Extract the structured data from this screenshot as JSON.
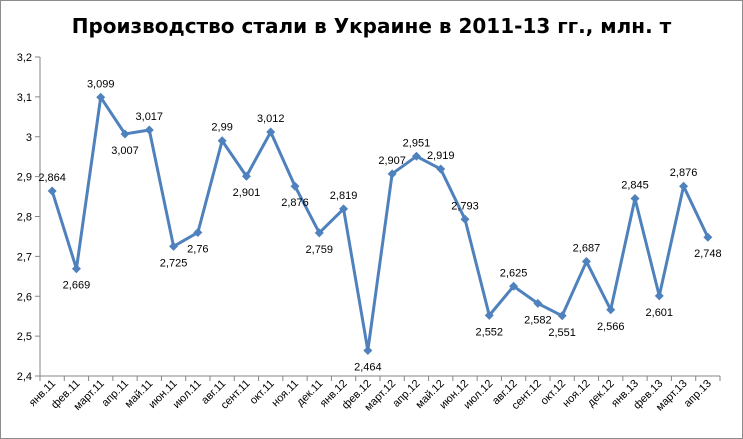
{
  "chart_data": {
    "type": "line",
    "title": "Производство стали в Украине в 2011-13 гг., млн. т",
    "xlabel": "",
    "ylabel": "",
    "ylim": [
      2.4,
      3.2
    ],
    "ytick_values": [
      2.4,
      2.5,
      2.6,
      2.7,
      2.8,
      2.9,
      3.0,
      3.1,
      3.2
    ],
    "ytick_labels": [
      "2,4",
      "2,5",
      "2,6",
      "2,7",
      "2,8",
      "2,9",
      "3",
      "3,1",
      "3,2"
    ],
    "grid": false,
    "legend": "none",
    "series_color": "#4f81bd",
    "categories": [
      "янв.11",
      "фев.11",
      "март.11",
      "апр.11",
      "май.11",
      "июн.11",
      "июл.11",
      "авг.11",
      "сент.11",
      "окт.11",
      "ноя.11",
      "дек.11",
      "янв.12",
      "фев.12",
      "март.12",
      "апр.12",
      "май.12",
      "июн.12",
      "июл.12",
      "авг.12",
      "сент.12",
      "окт.12",
      "ноя.12",
      "дек.12",
      "янв.13",
      "фев.13",
      "март.13",
      "апр.13"
    ],
    "values": [
      2.864,
      2.669,
      3.099,
      3.007,
      3.017,
      2.725,
      2.76,
      2.99,
      2.901,
      3.012,
      2.876,
      2.759,
      2.819,
      2.464,
      2.907,
      2.951,
      2.919,
      2.793,
      2.552,
      2.625,
      2.582,
      2.551,
      2.687,
      2.566,
      2.845,
      2.601,
      2.876,
      2.748
    ],
    "data_labels": [
      "2,864",
      "2,669",
      "3,099",
      "3,007",
      "3,017",
      "2,725",
      "2,76",
      "2,99",
      "2,901",
      "3,012",
      "2,876",
      "2,759",
      "2,819",
      "2,464",
      "2,907",
      "2,951",
      "2,919",
      "2,793",
      "2,552",
      "2,625",
      "2,582",
      "2,551",
      "2,687",
      "2,566",
      "2,845",
      "2,601",
      "2,876",
      "2,748"
    ]
  }
}
